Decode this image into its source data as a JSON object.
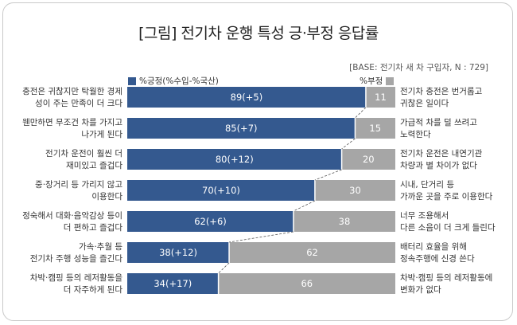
{
  "chart_data": {
    "type": "bar",
    "stacked": true,
    "orientation": "horizontal",
    "title": "[그림] 전기차 운행 특성 긍·부정 응답률",
    "note": "[BASE: 전기차 새 차 구입자, N : 729]",
    "legend": {
      "placement": "top"
    },
    "xlim": [
      0,
      100
    ],
    "categories": [
      "충전은 귀찮지만 탁월한 경제성이 주는 만족이 더 크다",
      "웬만하면 무조건 차를 가지고 나가게 된다",
      "전기차 운전이 훨씬 더 재미있고 즐겁다",
      "중·장거리 등 가리지 않고 이용한다",
      "정숙해서 대화·음악감상 등이 더 편하고 즐겁다",
      "가속·추월 등 전기차 주행 성능을 즐긴다",
      "차박·캠핑 등의 레저활동을 더 자주하게 된다"
    ],
    "left_labels": [
      [
        "충전은 귀찮지만 탁월한 경제",
        "성이 주는 만족이 더 크다"
      ],
      [
        "웬만하면 무조건 차를 가지고",
        "나가게 된다"
      ],
      [
        "전기차 운전이 훨씬 더",
        "재미있고 즐겁다"
      ],
      [
        "중·장거리 등 가리지 않고",
        "이용한다"
      ],
      [
        "정숙해서 대화·음악감상 등이",
        "더 편하고 즐겁다"
      ],
      [
        "가속·추월 등",
        "전기차 주행 성능을 즐긴다"
      ],
      [
        "차박·캠핑 등의 레저활동을",
        "더 자주하게 된다"
      ]
    ],
    "right_labels": [
      [
        "전기차 충전은 번거롭고",
        "귀찮은 일이다"
      ],
      [
        "가급적 차를 덜 쓰려고",
        "노력한다"
      ],
      [
        "전기차 운전은 내연기관",
        "차량과 별 차이가 없다"
      ],
      [
        "시내, 단거리 등",
        "가까운 곳을 주로 이용한다"
      ],
      [
        "너무 조용해서",
        "다른 소음이 더 크게 들린다"
      ],
      [
        "배터리 효율을 위해",
        "정속주행에 신경 쓴다"
      ],
      [
        "차박·캠핑 등의 레저활동에",
        "변화가 없다"
      ]
    ],
    "series": [
      {
        "name": "%긍정(%수입-%국산)",
        "color": "#34598f",
        "values": [
          89,
          85,
          80,
          70,
          62,
          38,
          34
        ],
        "labels": [
          "89(+5)",
          "85(+7)",
          "80(+12)",
          "70(+10)",
          "62(+6)",
          "38(+12)",
          "34(+17)"
        ]
      },
      {
        "name": "%부정",
        "color": "#a6a6a6",
        "values": [
          11,
          15,
          20,
          30,
          38,
          62,
          66
        ],
        "labels": [
          "11",
          "15",
          "20",
          "30",
          "38",
          "62",
          "66"
        ]
      }
    ]
  }
}
